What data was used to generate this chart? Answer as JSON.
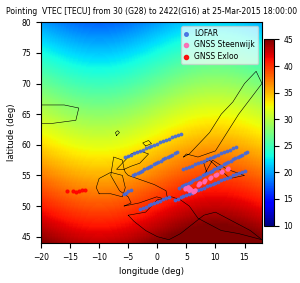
{
  "title": "Pointing  VTEC [TECU] from 30 (G28) to 2422(G16) at 25-Mar-2015 18:00:00",
  "xlabel": "longitude (deg)",
  "ylabel": "latitude (deg)",
  "lon_min": -20,
  "lon_max": 18,
  "lat_min": 44,
  "lat_max": 80,
  "colormap": "jet",
  "cbar_min": 10,
  "cbar_max": 45,
  "cbar_ticks": [
    10,
    15,
    20,
    25,
    30,
    35,
    40,
    45
  ],
  "background_color": "#d4f0f8",
  "title_fontsize": 5.5,
  "axis_label_fontsize": 6,
  "tick_fontsize": 5.5,
  "legend_fontsize": 5.5,
  "gnss_steenwijk_lon": [
    5.53,
    5.55,
    5.57,
    5.51,
    5.54,
    5.56,
    5.52,
    5.5,
    5.49,
    5.58,
    6.2,
    6.3,
    6.1,
    6.15,
    6.25,
    6.35,
    4.9,
    5.0,
    5.1,
    5.2,
    4.8,
    4.85,
    4.95,
    5.05,
    5.15,
    5.25,
    5.35,
    6.4,
    6.45,
    6.5,
    7.0,
    7.1,
    7.2,
    7.3,
    8.0,
    8.1,
    8.2,
    9.0,
    9.1,
    9.2,
    10.0,
    10.1,
    10.2,
    11.0,
    11.1,
    11.2,
    12.0,
    12.1,
    12.2
  ],
  "gnss_steenwijk_lat": [
    52.7,
    52.75,
    52.8,
    52.65,
    52.72,
    52.78,
    52.68,
    52.62,
    52.6,
    52.82,
    52.4,
    52.45,
    52.35,
    52.38,
    52.42,
    52.48,
    52.9,
    52.95,
    53.0,
    53.05,
    52.85,
    52.88,
    52.92,
    52.98,
    53.02,
    53.08,
    53.12,
    52.5,
    52.55,
    52.6,
    53.5,
    53.6,
    53.7,
    53.8,
    54.0,
    54.1,
    54.2,
    54.5,
    54.6,
    54.7,
    55.0,
    55.1,
    55.2,
    55.5,
    55.6,
    55.7,
    56.0,
    56.1,
    56.2
  ],
  "gnss_exloo_lon": [
    -15.5,
    -14.5,
    -14.0,
    -13.5,
    -13.0,
    -12.5
  ],
  "gnss_exloo_lat": [
    52.5,
    52.4,
    52.3,
    52.5,
    52.6,
    52.55
  ],
  "lofar_lon": [
    -5.5,
    -5.0,
    -4.5,
    -4.0,
    -3.5,
    -3.0,
    -2.5,
    -2.0,
    -1.5,
    -1.0,
    -0.5,
    0.0,
    0.5,
    1.0,
    1.5,
    2.0,
    2.5,
    3.0,
    3.5,
    4.0,
    4.5,
    5.0,
    5.5,
    6.0,
    6.5,
    7.0,
    7.5,
    8.0,
    8.5,
    9.0,
    9.5,
    10.0,
    10.5,
    11.0,
    11.5,
    12.0,
    12.5,
    13.0,
    13.5,
    -4.2,
    -3.8,
    -3.4,
    -3.0,
    -2.6,
    -2.2,
    -1.8,
    -1.4,
    -1.0,
    -0.6,
    -0.2,
    0.2,
    0.6,
    1.0,
    1.4,
    1.8,
    2.2,
    2.6,
    3.0,
    3.4,
    3.8,
    4.2,
    4.6,
    5.0,
    5.4,
    5.8,
    6.2,
    6.6,
    7.0,
    7.4,
    7.8,
    8.2,
    8.6,
    9.0,
    9.4,
    9.8,
    10.2,
    10.6,
    11.0,
    11.4,
    11.8,
    12.2,
    12.6,
    13.0,
    13.4,
    13.8,
    14.2,
    14.6,
    15.0,
    15.4,
    -5.8,
    -5.4,
    -5.0,
    -4.6,
    -3.0,
    -2.5,
    -2.0,
    -1.5,
    -1.0,
    -0.5,
    0.0,
    0.5,
    1.0,
    1.5,
    2.0,
    3.0,
    3.5,
    4.0,
    4.5,
    5.0,
    5.5,
    6.0,
    6.5,
    7.0,
    7.5,
    8.0,
    8.5,
    9.0,
    9.5,
    10.0,
    10.5,
    11.0,
    11.5,
    12.0,
    12.5,
    13.0,
    13.5,
    14.0,
    14.5,
    15.0
  ],
  "lofar_lat": [
    58.0,
    58.2,
    58.4,
    58.6,
    58.8,
    59.0,
    59.2,
    59.4,
    59.6,
    59.8,
    60.0,
    60.2,
    60.4,
    60.6,
    60.8,
    61.0,
    61.2,
    61.4,
    61.6,
    61.8,
    56.0,
    56.2,
    56.4,
    56.6,
    56.8,
    57.0,
    57.2,
    57.4,
    57.6,
    57.8,
    58.0,
    58.2,
    58.4,
    58.6,
    58.8,
    59.0,
    59.2,
    59.4,
    59.6,
    55.0,
    55.2,
    55.4,
    55.6,
    55.8,
    56.0,
    56.2,
    56.4,
    56.6,
    56.8,
    57.0,
    57.2,
    57.4,
    57.6,
    57.8,
    58.0,
    58.2,
    58.4,
    58.6,
    58.8,
    53.0,
    53.2,
    53.4,
    53.6,
    53.8,
    54.0,
    54.2,
    54.4,
    54.6,
    54.8,
    55.0,
    55.2,
    55.4,
    55.6,
    55.8,
    56.0,
    56.2,
    56.4,
    56.6,
    56.8,
    57.0,
    57.2,
    57.4,
    57.6,
    57.8,
    58.0,
    58.2,
    58.4,
    58.6,
    58.8,
    52.0,
    52.2,
    52.4,
    52.6,
    49.5,
    49.7,
    49.9,
    50.1,
    50.3,
    50.5,
    50.7,
    50.9,
    51.1,
    51.3,
    51.5,
    51.0,
    51.2,
    51.4,
    51.6,
    51.8,
    52.0,
    52.2,
    52.4,
    52.6,
    52.8,
    53.0,
    53.2,
    53.4,
    53.6,
    53.8,
    54.0,
    54.2,
    54.4,
    54.6,
    54.8,
    55.0,
    55.2,
    55.4,
    55.6,
    55.8
  ],
  "vtec_gradient_description": "background gradient representing VTEC values",
  "coast_color": "black",
  "gnss_steenwijk_color": "#ff69b4",
  "gnss_exloo_color": "#ff0000",
  "lofar_color": "#4169e1",
  "marker_size": 3,
  "legend_loc": "upper right"
}
